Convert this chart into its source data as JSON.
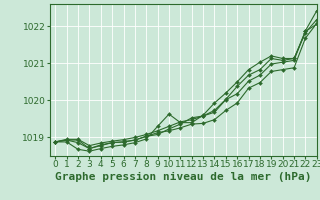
{
  "title": "Graphe pression niveau de la mer (hPa)",
  "background_color": "#cce8d8",
  "plot_background": "#cce8d8",
  "grid_color": "#ffffff",
  "line_color": "#2d6a2d",
  "marker_color": "#2d6a2d",
  "xlim": [
    -0.5,
    23
  ],
  "ylim": [
    1018.5,
    1022.6
  ],
  "yticks": [
    1019,
    1020,
    1021,
    1022
  ],
  "xticks": [
    0,
    1,
    2,
    3,
    4,
    5,
    6,
    7,
    8,
    9,
    10,
    11,
    12,
    13,
    14,
    15,
    16,
    17,
    18,
    19,
    20,
    21,
    22,
    23
  ],
  "series": [
    [
      1018.88,
      1018.95,
      1018.95,
      1018.78,
      1018.85,
      1018.9,
      1018.94,
      1019.0,
      1019.08,
      1019.18,
      1019.3,
      1019.42,
      1019.48,
      1019.58,
      1019.68,
      1020.02,
      1020.18,
      1020.52,
      1020.68,
      1020.98,
      1021.03,
      1021.08,
      1021.88,
      1022.42
    ],
    [
      1018.88,
      1018.93,
      1018.93,
      1018.7,
      1018.78,
      1018.86,
      1018.88,
      1018.93,
      1019.03,
      1019.13,
      1019.18,
      1019.26,
      1019.36,
      1019.38,
      1019.48,
      1019.73,
      1019.93,
      1020.33,
      1020.48,
      1020.78,
      1020.83,
      1020.88,
      1021.68,
      1022.08
    ],
    [
      1018.88,
      1018.93,
      1018.86,
      1018.7,
      1018.8,
      1018.86,
      1018.88,
      1018.93,
      1019.03,
      1019.08,
      1019.23,
      1019.36,
      1019.53,
      1019.58,
      1019.73,
      1020.03,
      1020.38,
      1020.68,
      1020.83,
      1021.13,
      1021.08,
      1021.13,
      1021.83,
      1022.18
    ],
    [
      1018.88,
      1018.88,
      1018.68,
      1018.63,
      1018.7,
      1018.76,
      1018.8,
      1018.86,
      1018.96,
      1019.3,
      1019.63,
      1019.4,
      1019.4,
      1019.6,
      1019.93,
      1020.2,
      1020.5,
      1020.83,
      1021.03,
      1021.2,
      1021.13,
      1021.13,
      1021.86,
      1022.06
    ]
  ],
  "series_with_markers": [
    0,
    1,
    2,
    3
  ],
  "title_fontsize": 8,
  "tick_fontsize": 6.5,
  "ylabel_color": "#2d6a2d",
  "title_color": "#2d6a2d"
}
